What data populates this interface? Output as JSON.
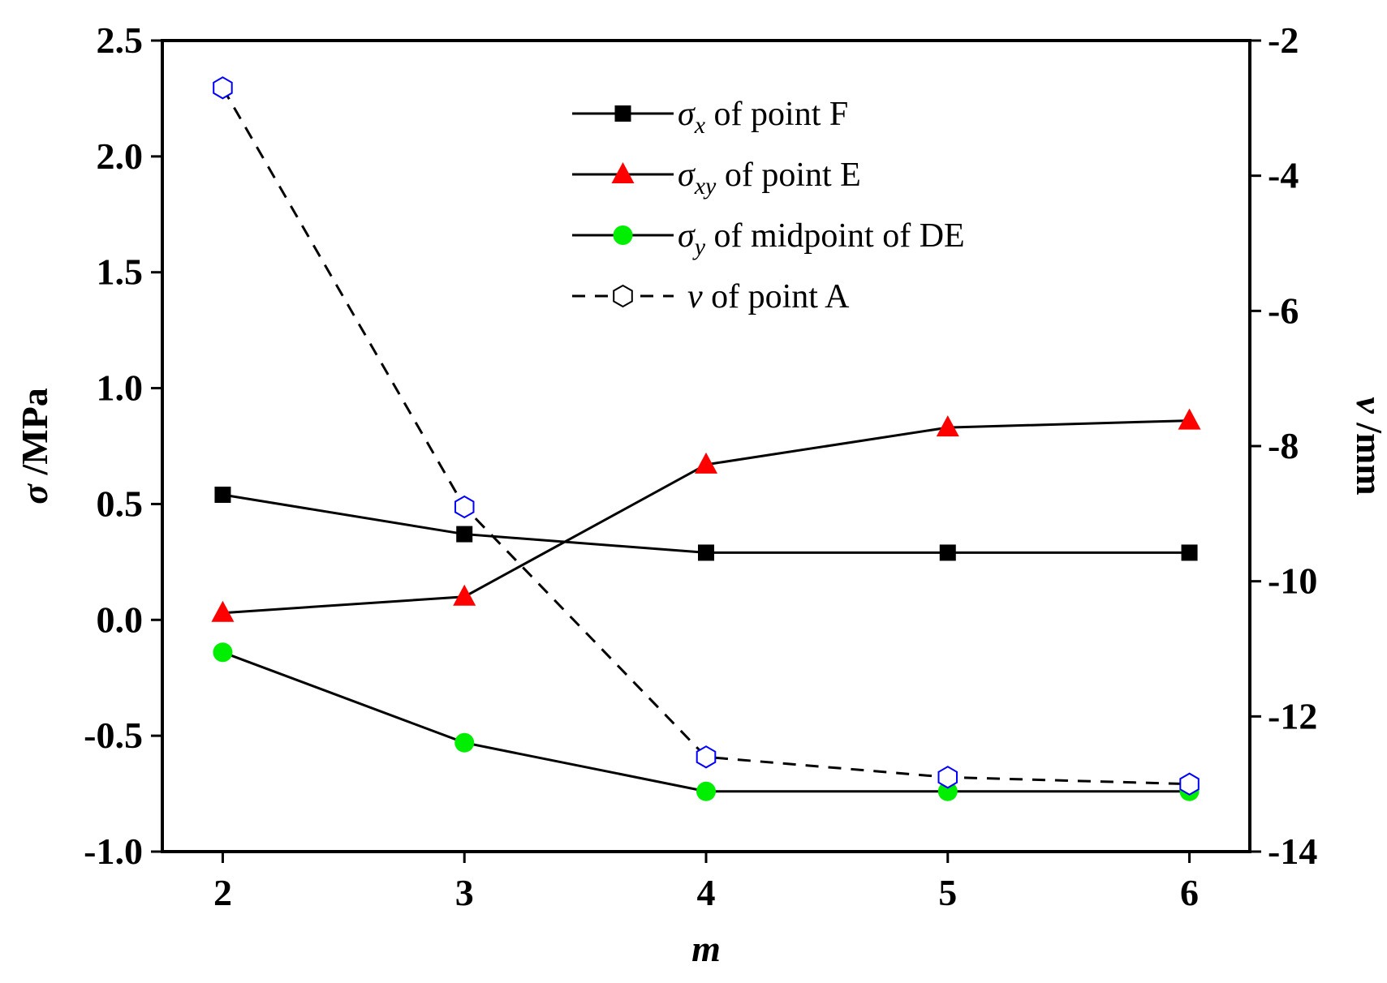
{
  "chart_data": {
    "type": "line",
    "x": [
      2,
      3,
      4,
      5,
      6
    ],
    "xticks": [
      "2",
      "3",
      "4",
      "5",
      "6"
    ],
    "xlabel": "m",
    "xlim": [
      1.75,
      6.25
    ],
    "y_left": {
      "label_symbol": "σ",
      "label_unit": " /MPa",
      "lim": [
        -1.0,
        2.5
      ],
      "ticks": [
        "-1.0",
        "-0.5",
        "0.0",
        "0.5",
        "1.0",
        "1.5",
        "2.0",
        "2.5"
      ]
    },
    "y_right": {
      "label_symbol": "v",
      "label_unit": " /mm",
      "lim": [
        -14,
        -2
      ],
      "ticks": [
        "-14",
        "-12",
        "-10",
        "-8",
        "-6",
        "-4",
        "-2"
      ]
    },
    "legend_position": "top-center",
    "series": [
      {
        "name": "σx of point F",
        "legend_symbol": "σ",
        "legend_sub": "x",
        "legend_rest": " of point F",
        "axis": "left",
        "values": [
          0.54,
          0.37,
          0.29,
          0.29,
          0.29
        ],
        "marker": "square",
        "line": "solid",
        "color": "#000000",
        "marker_fill": "#000000"
      },
      {
        "name": "σxy of point E",
        "legend_symbol": "σ",
        "legend_sub": "xy",
        "legend_rest": " of point E",
        "axis": "left",
        "values": [
          0.03,
          0.1,
          0.67,
          0.83,
          0.86
        ],
        "marker": "triangle",
        "line": "solid",
        "color": "#000000",
        "marker_fill": "#ff0000"
      },
      {
        "name": "σy of midpoint of DE",
        "legend_symbol": "σ",
        "legend_sub": "y",
        "legend_rest": " of midpoint of DE",
        "axis": "left",
        "values": [
          -0.14,
          -0.53,
          -0.74,
          -0.74,
          -0.74
        ],
        "marker": "circle",
        "line": "solid",
        "color": "#000000",
        "marker_fill": "#00ee00"
      },
      {
        "name": "v of point A",
        "legend_symbol": "v",
        "legend_sub": "",
        "legend_rest": " of point A",
        "axis": "right",
        "values": [
          -2.7,
          -8.9,
          -12.6,
          -12.9,
          -13.0
        ],
        "marker": "hexagon-open",
        "line": "dashed",
        "color": "#000000",
        "marker_stroke": "#0000ff"
      }
    ]
  }
}
